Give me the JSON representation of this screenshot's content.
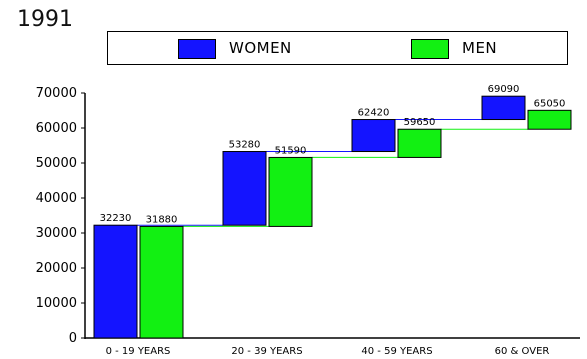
{
  "chart_data": {
    "type": "bar",
    "title": "1991",
    "categories": [
      "0 - 19 YEARS",
      "20 - 39 YEARS",
      "40 - 59 YEARS",
      "60 & OVER"
    ],
    "series": [
      {
        "name": "WOMEN",
        "color": "#1414ff",
        "tops": [
          32230,
          53280,
          62420,
          69090
        ],
        "bottoms": [
          0,
          32230,
          53280,
          62420
        ],
        "labels": [
          "32230",
          "53280",
          "62420",
          "69090"
        ]
      },
      {
        "name": "MEN",
        "color": "#12f012",
        "tops": [
          31880,
          51590,
          59650,
          65050
        ],
        "bottoms": [
          0,
          31880,
          51590,
          59650
        ],
        "labels": [
          "31880",
          "51590",
          "59650",
          "65050"
        ]
      }
    ],
    "y_ticks": [
      "0",
      "10000",
      "20000",
      "30000",
      "40000",
      "50000",
      "60000",
      "70000"
    ],
    "ylim": [
      0,
      70000
    ],
    "grid": false,
    "legend": "top"
  }
}
